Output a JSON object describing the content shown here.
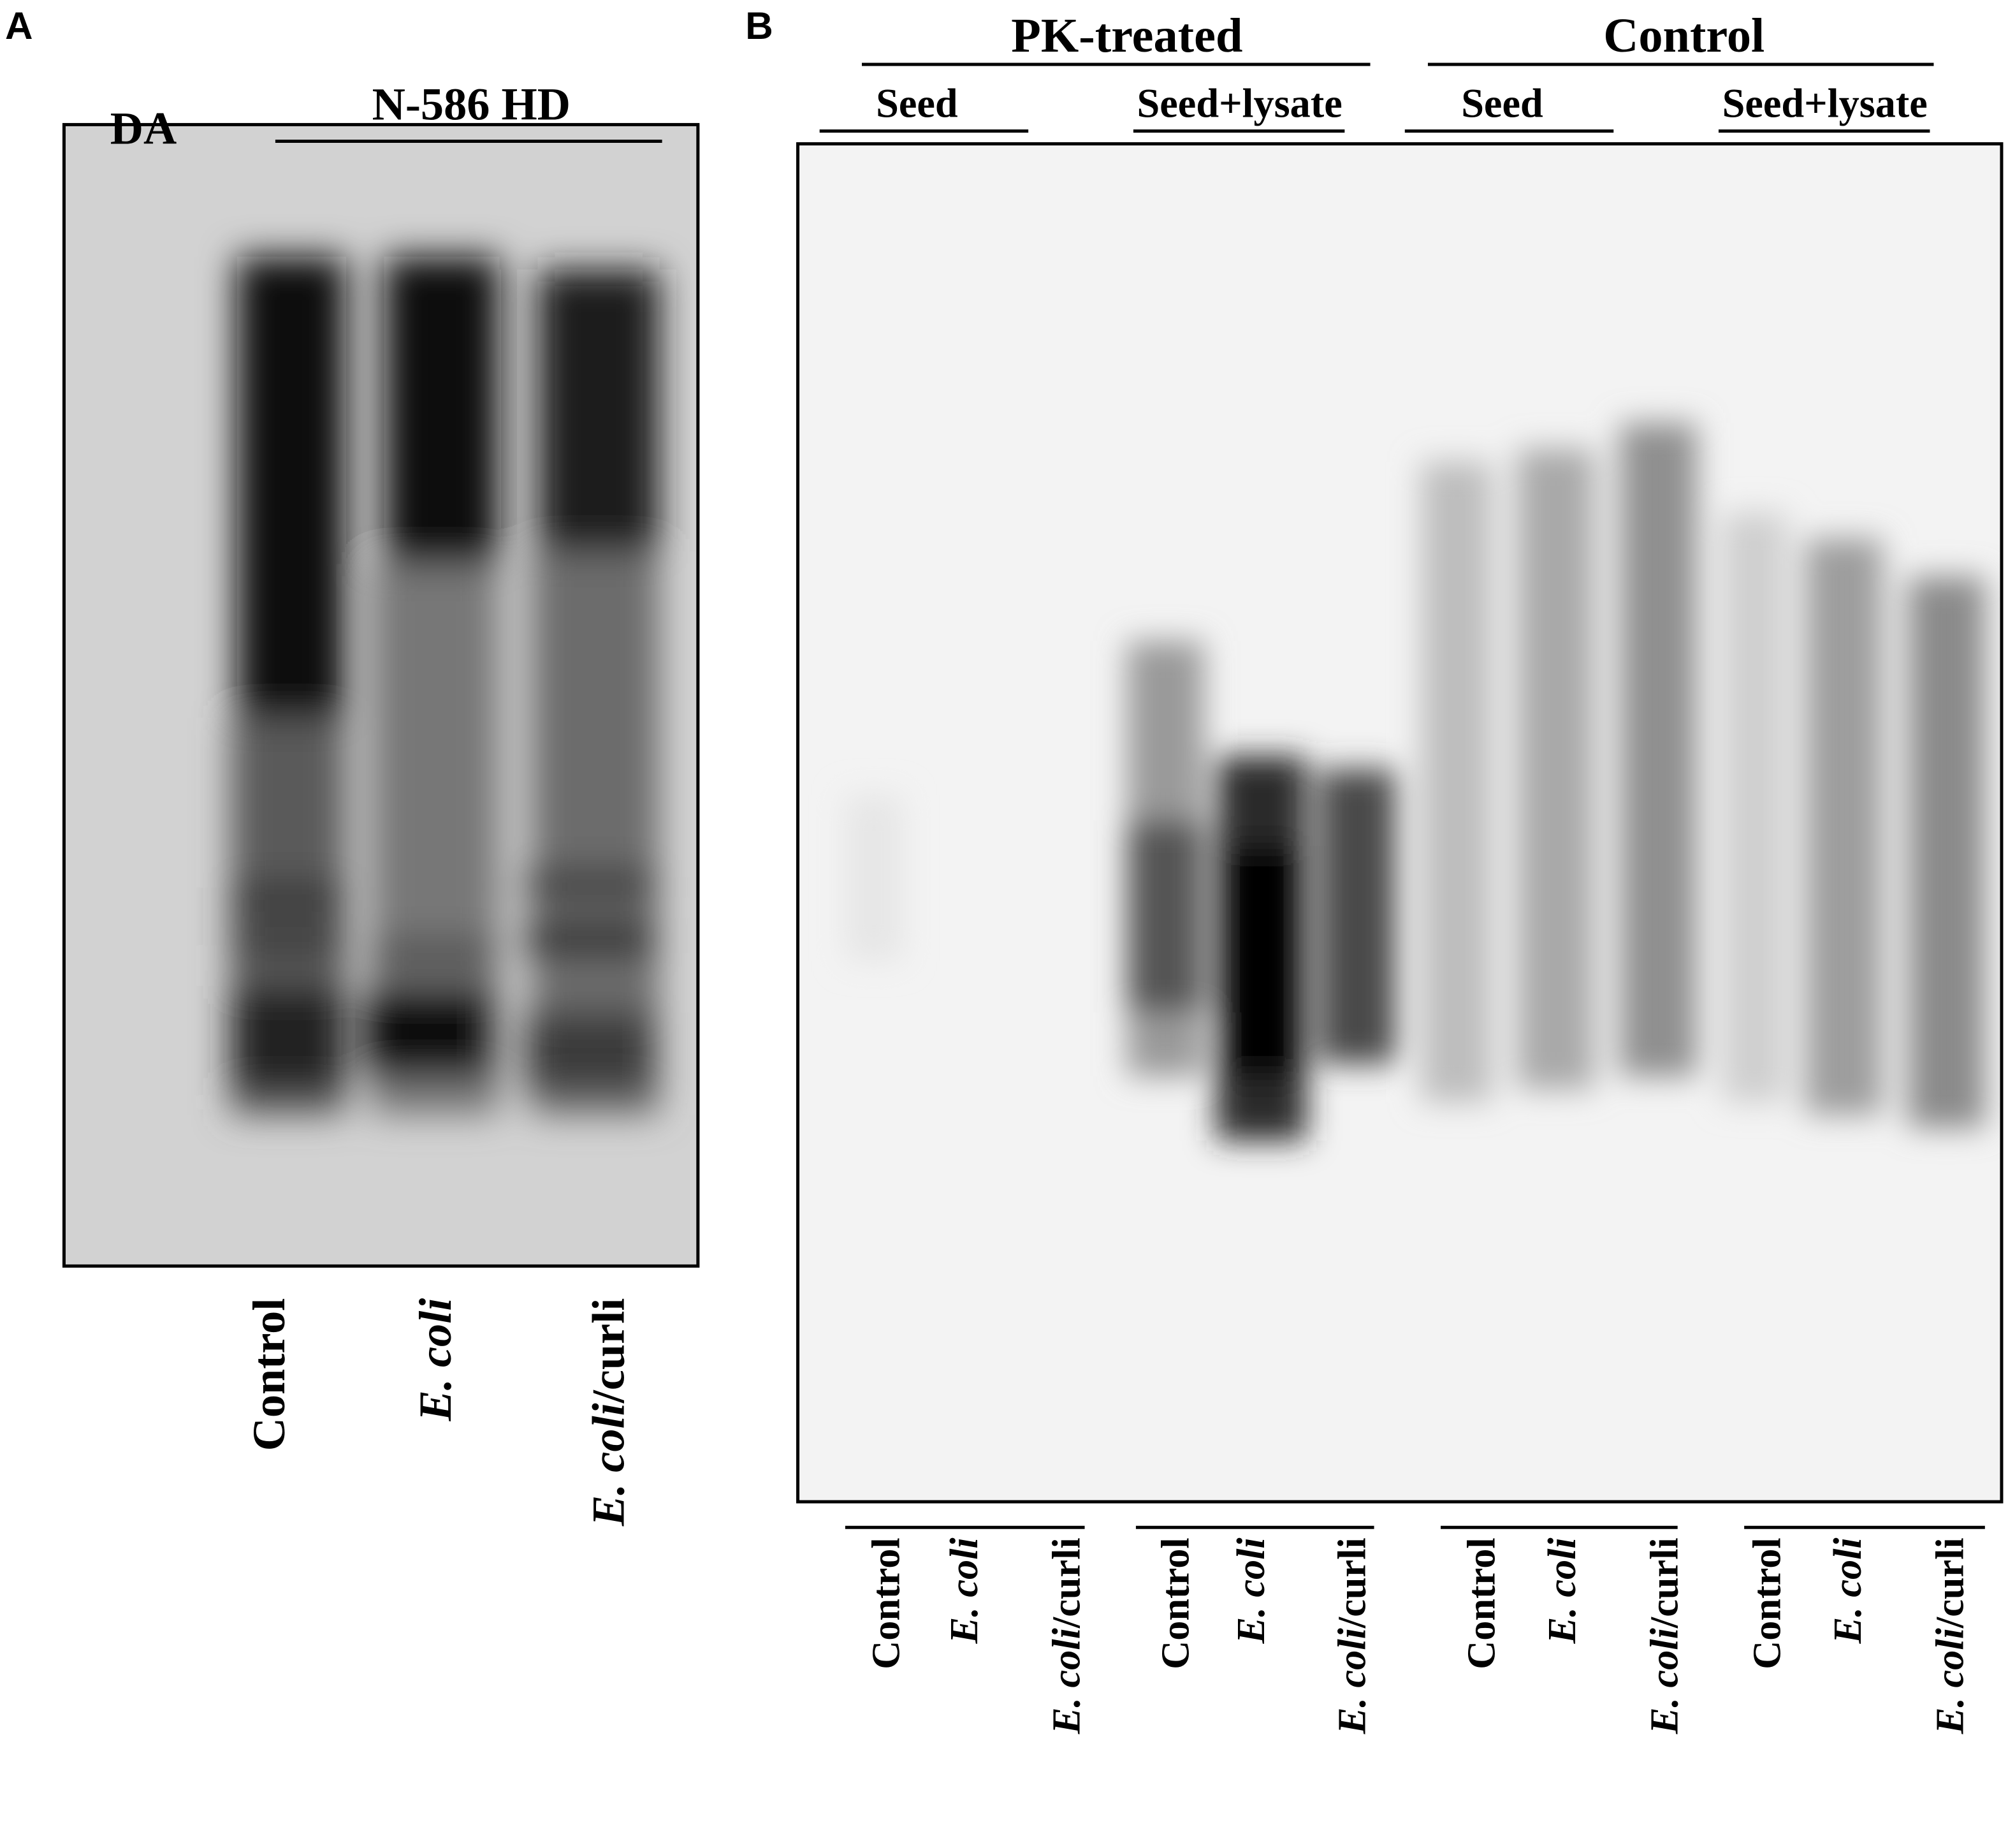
{
  "panel_a": {
    "label": "A",
    "marker": "DA",
    "group": "N-586 HD",
    "lanes": [
      [
        {
          "text": "Control"
        }
      ],
      [
        {
          "text": "E. coli",
          "italic": true
        }
      ],
      [
        {
          "text": "E. coli",
          "italic": true
        },
        {
          "text": "/curli"
        }
      ]
    ]
  },
  "panel_b": {
    "label": "B",
    "groups": [
      {
        "title": "PK-treated",
        "subgroups": [
          "Seed",
          "Seed+lysate"
        ]
      },
      {
        "title": "Control",
        "subgroups": [
          "Seed",
          "Seed+lysate"
        ]
      }
    ],
    "lane_groups": [
      [
        [
          {
            "text": "Control"
          }
        ],
        [
          {
            "text": "E. coli",
            "italic": true
          }
        ],
        [
          {
            "text": "E. coli",
            "italic": true
          },
          {
            "text": "/curli"
          }
        ]
      ],
      [
        [
          {
            "text": "Control"
          }
        ],
        [
          {
            "text": "E. coli",
            "italic": true
          }
        ],
        [
          {
            "text": "E. coli",
            "italic": true
          },
          {
            "text": "/curli"
          }
        ]
      ],
      [
        [
          {
            "text": "Control"
          }
        ],
        [
          {
            "text": "E. coli",
            "italic": true
          }
        ],
        [
          {
            "text": "E. coli",
            "italic": true
          },
          {
            "text": "/curli"
          }
        ]
      ],
      [
        [
          {
            "text": "Control"
          }
        ],
        [
          {
            "text": "E. coli",
            "italic": true
          }
        ],
        [
          {
            "text": "E. coli",
            "italic": true
          },
          {
            "text": "/curli"
          }
        ]
      ]
    ]
  }
}
